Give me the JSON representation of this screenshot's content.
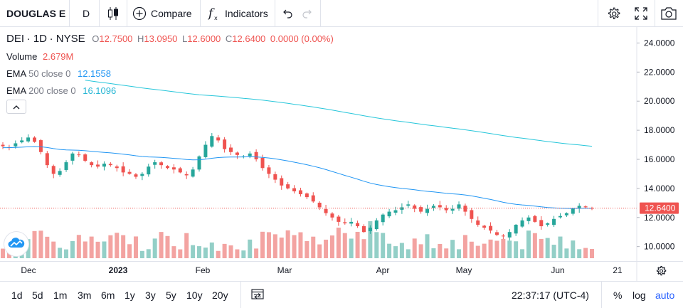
{
  "toolbar": {
    "symbol": "DOUGLAS E",
    "interval": "D",
    "compare_label": "Compare",
    "indicators_label": "Indicators"
  },
  "legend": {
    "ticker": "DEI",
    "interval": "1D",
    "exchange": "NYSE",
    "open_key": "O",
    "open": "12.7500",
    "high_key": "H",
    "high": "13.0950",
    "low_key": "L",
    "low": "12.6000",
    "close_key": "C",
    "close": "12.6400",
    "change": "0.0000 (0.00%)",
    "volume_label": "Volume",
    "volume_value": "2.679M",
    "ema50_label": "EMA",
    "ema50_params": "50 close 0",
    "ema50_value": "12.1558",
    "ema200_label": "EMA",
    "ema200_params": "200 close 0",
    "ema200_value": "16.1096"
  },
  "price_axis": {
    "ticks": [
      "24.0000",
      "22.0000",
      "20.0000",
      "18.0000",
      "16.0000",
      "14.0000",
      "12.0000",
      "10.0000"
    ],
    "last_price": "12.6400"
  },
  "time_axis": {
    "ticks": [
      {
        "label": "Dec",
        "bold": false
      },
      {
        "label": "2023",
        "bold": true
      },
      {
        "label": "Feb",
        "bold": false
      },
      {
        "label": "Mar",
        "bold": false
      },
      {
        "label": "Apr",
        "bold": false
      },
      {
        "label": "May",
        "bold": false
      },
      {
        "label": "Jun",
        "bold": false
      },
      {
        "label": "21",
        "bold": false
      }
    ]
  },
  "bottom_bar": {
    "timeframes": [
      "1d",
      "5d",
      "1m",
      "3m",
      "6m",
      "1y",
      "3y",
      "5y",
      "10y",
      "20y"
    ],
    "clock": "22:37:17 (UTC-4)",
    "percent_label": "%",
    "log_label": "log",
    "auto_label": "auto"
  },
  "colors": {
    "up": "#26a69a",
    "down": "#ef5350",
    "vol_up": "#93cfc7",
    "vol_down": "#f3a3a1",
    "ema50": "#2196f3",
    "ema200": "#26c6da",
    "accent": "#2962ff"
  },
  "icons": {
    "candles": "candlestick-icon",
    "compare": "plus-circle-icon",
    "indicators": "function-icon",
    "undo": "undo-icon",
    "redo": "redo-icon",
    "settings": "gear-icon",
    "fullscreen": "fullscreen-icon",
    "snapshot": "camera-icon",
    "date_range": "date-range-icon",
    "axis_settings": "gear-icon"
  },
  "chart_data": {
    "type": "candlestick",
    "ylim": [
      9.2,
      25.0
    ],
    "x": [
      "Dec",
      "2023",
      "Feb",
      "Mar",
      "Apr",
      "May",
      "Jun",
      "21"
    ],
    "close_series": [
      16.9,
      16.8,
      17.1,
      17.3,
      17.5,
      17.2,
      16.5,
      15.6,
      15.0,
      15.2,
      15.8,
      16.4,
      16.3,
      15.9,
      15.6,
      15.5,
      15.7,
      15.6,
      15.4,
      15.1,
      15.0,
      14.8,
      15.0,
      15.5,
      15.8,
      15.6,
      15.4,
      15.3,
      15.1,
      14.9,
      15.3,
      16.2,
      17.0,
      17.6,
      17.3,
      16.7,
      16.5,
      16.3,
      16.2,
      16.4,
      16.0,
      15.4,
      15.0,
      14.6,
      14.2,
      14.0,
      13.8,
      13.6,
      13.4,
      13.1,
      12.7,
      12.3,
      12.0,
      11.7,
      11.6,
      11.7,
      11.4,
      11.0,
      11.3,
      11.8,
      12.2,
      12.4,
      12.5,
      12.7,
      12.9,
      12.6,
      12.4,
      12.6,
      12.8,
      12.7,
      12.5,
      12.6,
      12.9,
      12.4,
      11.9,
      11.5,
      11.3,
      11.1,
      10.8,
      10.7,
      11.0,
      11.5,
      11.8,
      12.0,
      11.7,
      11.4,
      11.6,
      11.9,
      12.1,
      12.3,
      12.6,
      12.8,
      12.7,
      12.64
    ]
  }
}
